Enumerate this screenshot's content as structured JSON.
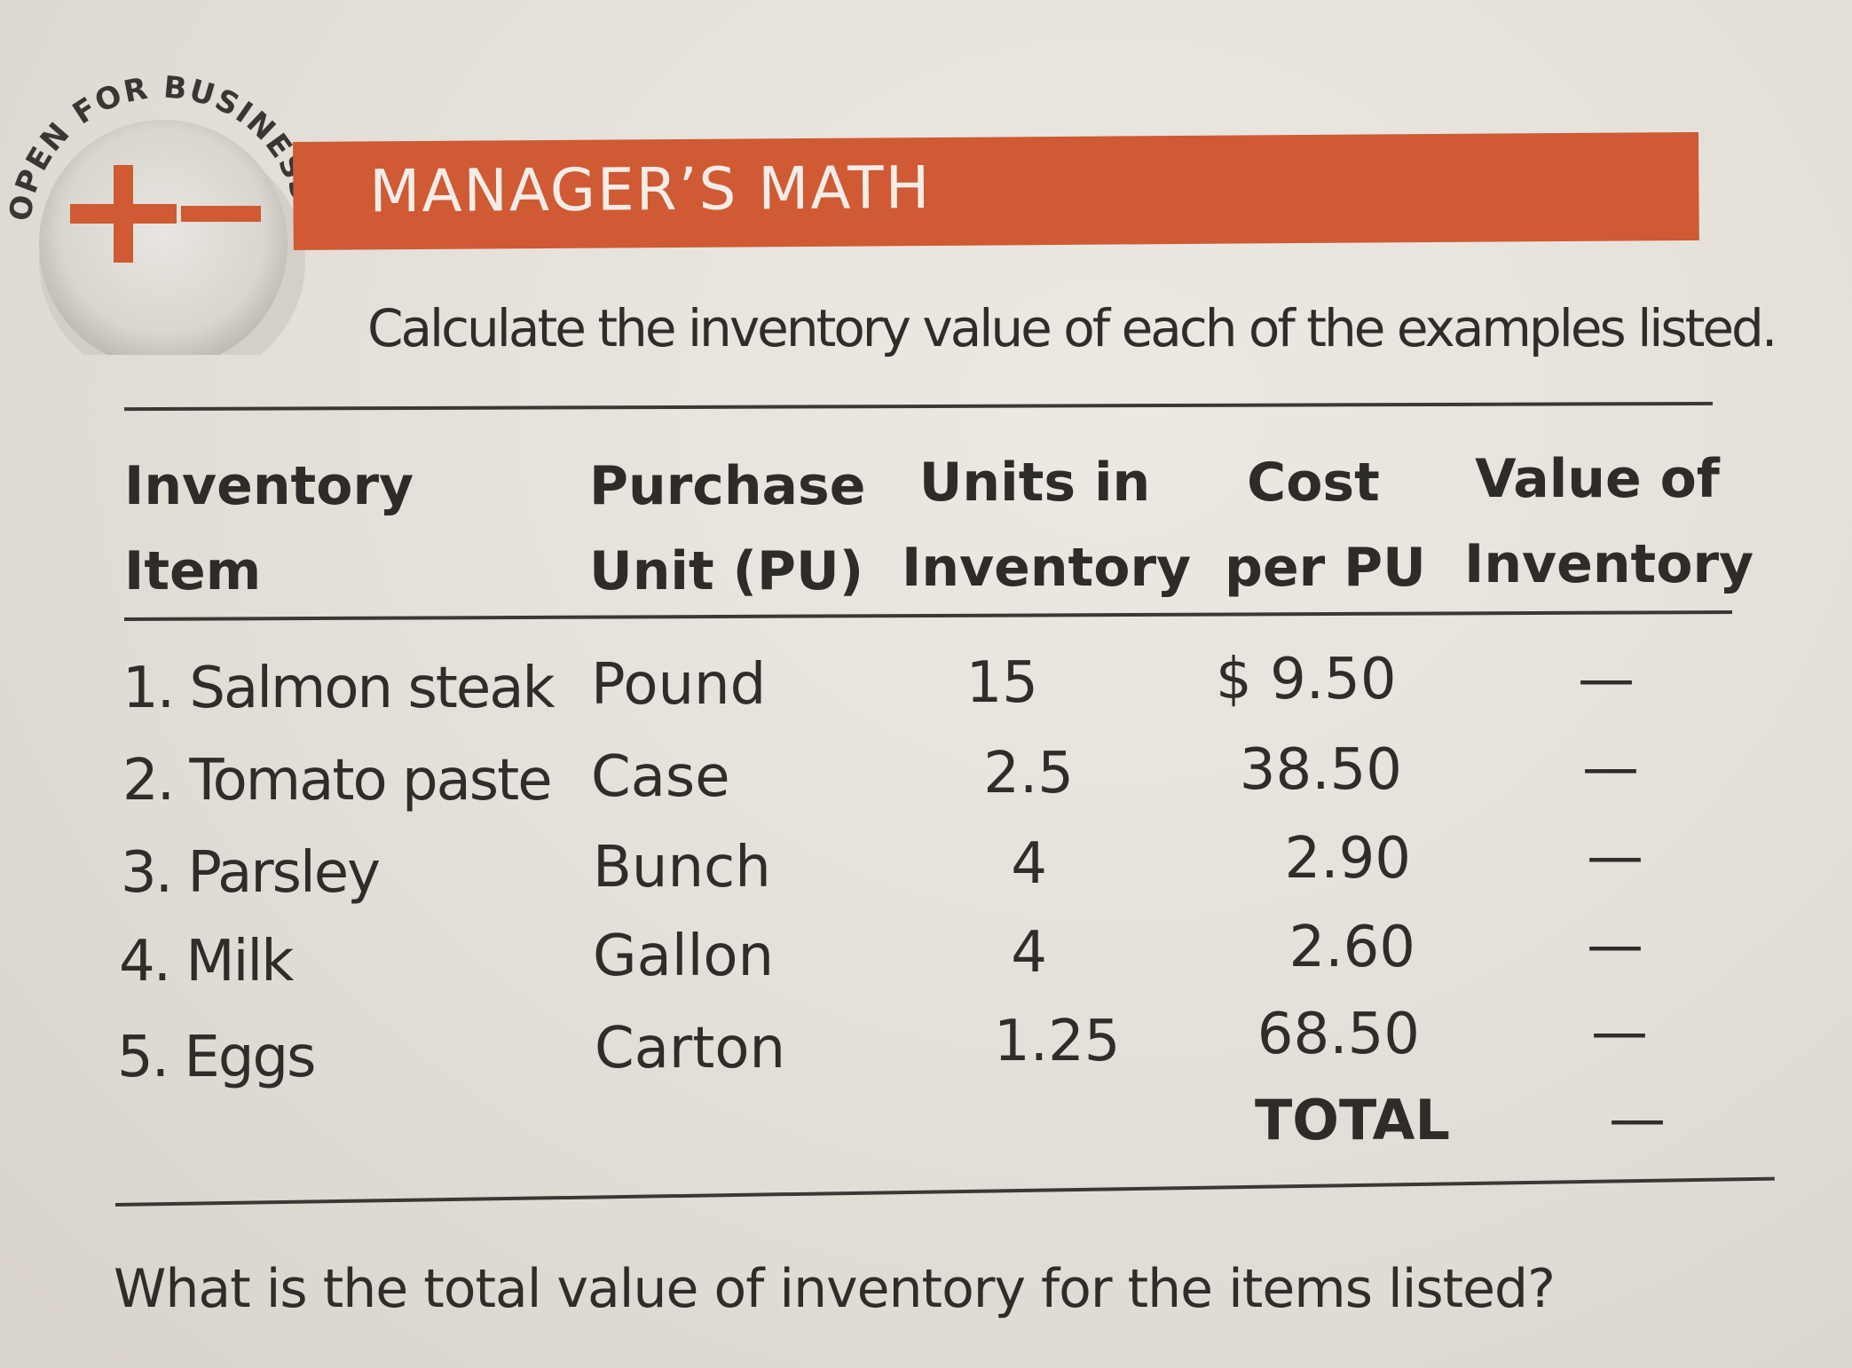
{
  "badge": {
    "arc_text": "OPEN FOR BUSINESS",
    "icon": "plus-minus-icon",
    "accent_color": "#cf5a33"
  },
  "header": {
    "title": "MANAGER’S MATH",
    "bar_color": "#cf5a33"
  },
  "instruction": "Calculate the inventory value of each of the examples listed.",
  "table": {
    "headers": [
      [
        "Inventory",
        "Item"
      ],
      [
        "Purchase",
        "Unit (PU)"
      ],
      [
        "Units in",
        "Inventory"
      ],
      [
        "Cost",
        "per PU"
      ],
      [
        "Value of",
        "Inventory"
      ]
    ],
    "rows": [
      {
        "item": "1. Salmon steak",
        "unit": "Pound",
        "units": "15",
        "cost": "$ 9.50",
        "value": "—"
      },
      {
        "item": "2. Tomato paste",
        "unit": "Case",
        "units": "2.5",
        "cost": "38.50",
        "value": "—"
      },
      {
        "item": "3. Parsley",
        "unit": "Bunch",
        "units": "4",
        "cost": "2.90",
        "value": "—"
      },
      {
        "item": "4. Milk",
        "unit": "Gallon",
        "units": "4",
        "cost": "2.60",
        "value": "—"
      },
      {
        "item": "5. Eggs",
        "unit": "Carton",
        "units": "1.25",
        "cost": "68.50",
        "value": "—"
      }
    ],
    "total_label": "TOTAL",
    "total_value": "—"
  },
  "question": "What is the total value of inventory for the items listed?"
}
